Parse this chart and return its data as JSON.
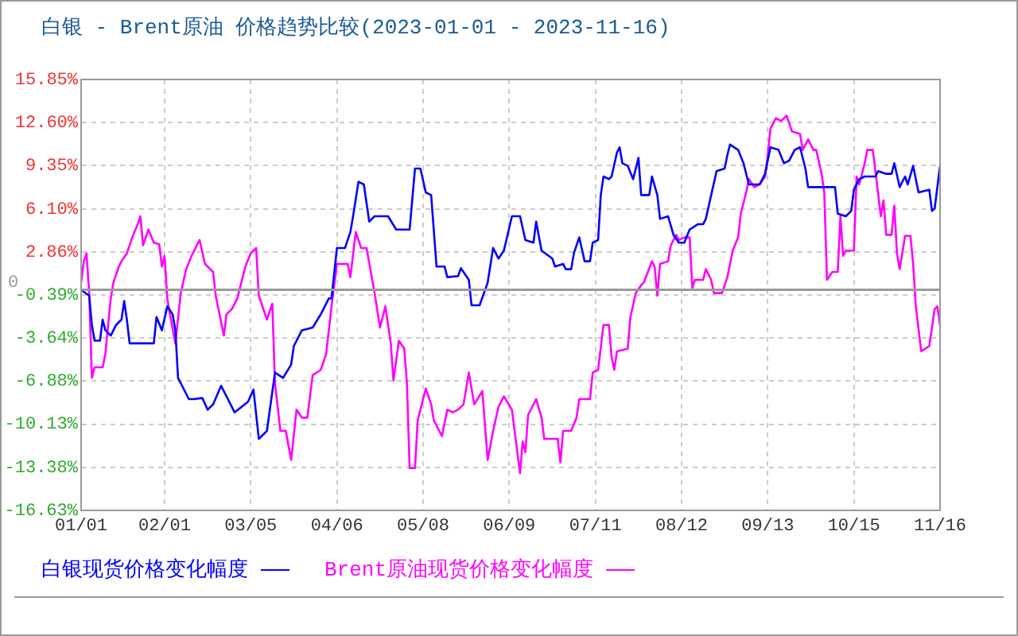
{
  "chart_data": {
    "type": "line",
    "title": "白银 - Brent原油 价格趋势比较(2023-01-01 - 2023-11-16)",
    "xlim": [
      "2023-01-01",
      "2023-11-16"
    ],
    "xticks": [
      {
        "value": "2023-01-01",
        "label": "01/01"
      },
      {
        "value": "2023-02-01",
        "label": "02/01"
      },
      {
        "value": "2023-03-05",
        "label": "03/05"
      },
      {
        "value": "2023-04-06",
        "label": "04/06"
      },
      {
        "value": "2023-05-08",
        "label": "05/08"
      },
      {
        "value": "2023-06-09",
        "label": "06/09"
      },
      {
        "value": "2023-07-11",
        "label": "07/11"
      },
      {
        "value": "2023-08-12",
        "label": "08/12"
      },
      {
        "value": "2023-09-13",
        "label": "09/13"
      },
      {
        "value": "2023-10-15",
        "label": "10/15"
      },
      {
        "value": "2023-11-16",
        "label": "11/16"
      }
    ],
    "ylim": [
      -16.63,
      15.85
    ],
    "yticks": [
      {
        "value": 15.85,
        "label": "15.85%"
      },
      {
        "value": 12.6,
        "label": "12.60%"
      },
      {
        "value": 9.35,
        "label": "9.35%"
      },
      {
        "value": 6.1,
        "label": "6.10%"
      },
      {
        "value": 2.86,
        "label": "2.86%"
      },
      {
        "value": -0.39,
        "label": "-0.39%"
      },
      {
        "value": -3.64,
        "label": "-3.64%"
      },
      {
        "value": -6.88,
        "label": "-6.88%"
      },
      {
        "value": -10.13,
        "label": "-10.13%"
      },
      {
        "value": -13.38,
        "label": "-13.38%"
      },
      {
        "value": -16.63,
        "label": "-16.63%"
      }
    ],
    "grid": true,
    "legend": "bottom",
    "marker": "none",
    "line_style": "solid",
    "ref_lines": [
      {
        "axis": "y",
        "value": 0,
        "label": "0",
        "color": "#999999"
      }
    ],
    "series": [
      {
        "name": "白银现货价格变化幅度",
        "color": "#0000ff",
        "x": [
          "2023-01-01",
          "2023-01-04",
          "2023-01-05",
          "2023-01-06",
          "2023-01-08",
          "2023-01-09",
          "2023-01-10",
          "2023-01-12",
          "2023-01-14",
          "2023-01-16",
          "2023-01-17",
          "2023-01-18",
          "2023-01-19",
          "2023-01-28",
          "2023-01-29",
          "2023-01-31",
          "2023-02-02",
          "2023-02-04",
          "2023-02-05",
          "2023-02-06",
          "2023-02-07",
          "2023-02-10",
          "2023-02-12",
          "2023-02-15",
          "2023-02-17",
          "2023-02-19",
          "2023-02-22",
          "2023-02-24",
          "2023-02-27",
          "2023-03-04",
          "2023-03-06",
          "2023-03-08",
          "2023-03-11",
          "2023-03-14",
          "2023-03-17",
          "2023-03-20",
          "2023-03-21",
          "2023-03-24",
          "2023-03-28",
          "2023-03-31",
          "2023-04-03",
          "2023-04-04",
          "2023-04-06",
          "2023-04-09",
          "2023-04-11",
          "2023-04-12",
          "2023-04-14",
          "2023-04-16",
          "2023-04-18",
          "2023-04-20",
          "2023-04-25",
          "2023-04-28",
          "2023-05-03",
          "2023-05-05",
          "2023-05-07",
          "2023-05-09",
          "2023-05-11",
          "2023-05-13",
          "2023-05-16",
          "2023-05-17",
          "2023-05-21",
          "2023-05-22",
          "2023-05-25",
          "2023-05-26",
          "2023-05-29",
          "2023-06-01",
          "2023-06-03",
          "2023-06-05",
          "2023-06-07",
          "2023-06-10",
          "2023-06-13",
          "2023-06-15",
          "2023-06-18",
          "2023-06-19",
          "2023-06-21",
          "2023-06-25",
          "2023-06-26",
          "2023-06-29",
          "2023-06-30",
          "2023-07-02",
          "2023-07-03",
          "2023-07-05",
          "2023-07-07",
          "2023-07-09",
          "2023-07-10",
          "2023-07-12",
          "2023-07-13",
          "2023-07-14",
          "2023-07-16",
          "2023-07-17",
          "2023-07-19",
          "2023-07-20",
          "2023-07-21",
          "2023-07-23",
          "2023-07-25",
          "2023-07-27",
          "2023-07-28",
          "2023-07-31",
          "2023-08-01",
          "2023-08-03",
          "2023-08-04",
          "2023-08-07",
          "2023-08-09",
          "2023-08-11",
          "2023-08-13",
          "2023-08-15",
          "2023-08-18",
          "2023-08-20",
          "2023-08-21",
          "2023-08-23",
          "2023-08-25",
          "2023-08-28",
          "2023-08-29",
          "2023-08-30",
          "2023-09-02",
          "2023-09-04",
          "2023-09-06",
          "2023-09-10",
          "2023-09-12",
          "2023-09-14",
          "2023-09-17",
          "2023-09-19",
          "2023-09-21",
          "2023-09-23",
          "2023-09-25",
          "2023-09-27",
          "2023-09-28",
          "2023-10-08",
          "2023-10-09",
          "2023-10-12",
          "2023-10-14",
          "2023-10-15",
          "2023-10-17",
          "2023-10-19",
          "2023-10-23",
          "2023-10-24",
          "2023-10-27",
          "2023-10-29",
          "2023-10-30",
          "2023-11-01",
          "2023-11-03",
          "2023-11-04",
          "2023-11-06",
          "2023-11-08",
          "2023-11-12",
          "2023-11-13",
          "2023-11-14",
          "2023-11-15",
          "2023-11-16"
        ],
        "values": [
          0.0,
          -0.45,
          -2.65,
          -3.84,
          -3.84,
          -2.25,
          -3.05,
          -3.45,
          -2.65,
          -2.25,
          -0.85,
          -2.25,
          -4.04,
          -4.04,
          -2.05,
          -3.05,
          -1.25,
          -1.85,
          -3.05,
          -6.64,
          -7.04,
          -8.24,
          -8.24,
          -8.16,
          -9.04,
          -8.64,
          -7.24,
          -8.04,
          -9.24,
          -8.44,
          -7.52,
          -11.24,
          -10.64,
          -6.24,
          -6.64,
          -5.64,
          -4.24,
          -3.05,
          -2.85,
          -1.85,
          -0.65,
          -0.65,
          3.15,
          3.15,
          4.35,
          5.54,
          8.14,
          7.94,
          5.14,
          5.54,
          5.54,
          4.54,
          4.54,
          9.14,
          9.14,
          7.34,
          7.14,
          1.75,
          1.75,
          0.95,
          1.03,
          1.63,
          0.75,
          -1.17,
          -1.17,
          0.55,
          3.15,
          2.35,
          2.95,
          5.54,
          5.54,
          3.75,
          3.55,
          5.14,
          2.95,
          2.35,
          1.75,
          1.95,
          1.55,
          1.55,
          2.75,
          3.95,
          2.15,
          2.15,
          3.55,
          3.75,
          7.14,
          8.54,
          8.34,
          8.54,
          10.34,
          10.74,
          9.54,
          9.34,
          8.34,
          9.94,
          7.14,
          7.14,
          8.54,
          7.14,
          5.34,
          5.54,
          4.14,
          3.55,
          3.55,
          4.54,
          4.94,
          4.94,
          5.34,
          7.14,
          8.94,
          9.14,
          10.14,
          10.94,
          10.54,
          9.54,
          7.94,
          7.94,
          8.74,
          10.74,
          10.54,
          9.54,
          9.74,
          10.54,
          10.74,
          9.14,
          7.74,
          7.74,
          5.74,
          5.54,
          5.94,
          7.54,
          8.34,
          8.54,
          8.54,
          8.94,
          8.74,
          8.74,
          9.54,
          7.74,
          8.54,
          7.94,
          9.34,
          7.34,
          7.54,
          5.94,
          6.14,
          7.74,
          9.34
        ]
      },
      {
        "name": "Brent原油现货价格变化幅度",
        "color": "#ff00ff",
        "x": [
          "2023-01-01",
          "2023-01-02",
          "2023-01-03",
          "2023-01-04",
          "2023-01-05",
          "2023-01-06",
          "2023-01-09",
          "2023-01-10",
          "2023-01-12",
          "2023-01-13",
          "2023-01-15",
          "2023-01-16",
          "2023-01-18",
          "2023-01-20",
          "2023-01-22",
          "2023-01-23",
          "2023-01-24",
          "2023-01-26",
          "2023-01-28",
          "2023-01-30",
          "2023-01-31",
          "2023-02-01",
          "2023-02-02",
          "2023-02-03",
          "2023-02-05",
          "2023-02-07",
          "2023-02-09",
          "2023-02-11",
          "2023-02-14",
          "2023-02-16",
          "2023-02-19",
          "2023-02-20",
          "2023-02-23",
          "2023-02-24",
          "2023-02-26",
          "2023-02-28",
          "2023-03-03",
          "2023-03-05",
          "2023-03-07",
          "2023-03-08",
          "2023-03-11",
          "2023-03-13",
          "2023-03-14",
          "2023-03-16",
          "2023-03-18",
          "2023-03-20",
          "2023-03-22",
          "2023-03-24",
          "2023-03-26",
          "2023-03-28",
          "2023-03-31",
          "2023-04-02",
          "2023-04-04",
          "2023-04-06",
          "2023-04-10",
          "2023-04-11",
          "2023-04-13",
          "2023-04-15",
          "2023-04-17",
          "2023-04-20",
          "2023-04-22",
          "2023-04-24",
          "2023-04-26",
          "2023-04-27",
          "2023-04-29",
          "2023-05-01",
          "2023-05-02",
          "2023-05-03",
          "2023-05-05",
          "2023-05-06",
          "2023-05-09",
          "2023-05-11",
          "2023-05-12",
          "2023-05-15",
          "2023-05-17",
          "2023-05-19",
          "2023-05-21",
          "2023-05-23",
          "2023-05-25",
          "2023-05-27",
          "2023-05-30",
          "2023-06-01",
          "2023-06-03",
          "2023-06-05",
          "2023-06-07",
          "2023-06-10",
          "2023-06-13",
          "2023-06-14",
          "2023-06-15",
          "2023-06-16",
          "2023-06-19",
          "2023-06-21",
          "2023-06-22",
          "2023-06-27",
          "2023-06-28",
          "2023-06-29",
          "2023-07-02",
          "2023-07-04",
          "2023-07-05",
          "2023-07-09",
          "2023-07-10",
          "2023-07-12",
          "2023-07-14",
          "2023-07-16",
          "2023-07-17",
          "2023-07-18",
          "2023-07-19",
          "2023-07-23",
          "2023-07-24",
          "2023-07-26",
          "2023-07-28",
          "2023-07-29",
          "2023-08-01",
          "2023-08-02",
          "2023-08-03",
          "2023-08-04",
          "2023-08-07",
          "2023-08-08",
          "2023-08-10",
          "2023-08-11",
          "2023-08-13",
          "2023-08-15",
          "2023-08-16",
          "2023-08-17",
          "2023-08-20",
          "2023-08-21",
          "2023-08-23",
          "2023-08-24",
          "2023-08-27",
          "2023-08-29",
          "2023-08-31",
          "2023-09-02",
          "2023-09-03",
          "2023-09-05",
          "2023-09-06",
          "2023-09-08",
          "2023-09-10",
          "2023-09-12",
          "2023-09-13",
          "2023-09-14",
          "2023-09-16",
          "2023-09-18",
          "2023-09-20",
          "2023-09-22",
          "2023-09-25",
          "2023-09-26",
          "2023-09-28",
          "2023-09-30",
          "2023-10-01",
          "2023-10-03",
          "2023-10-04",
          "2023-10-05",
          "2023-10-07",
          "2023-10-09",
          "2023-10-10",
          "2023-10-11",
          "2023-10-12",
          "2023-10-15",
          "2023-10-16",
          "2023-10-17",
          "2023-10-19",
          "2023-10-20",
          "2023-10-22",
          "2023-10-23",
          "2023-10-25",
          "2023-10-26",
          "2023-10-27",
          "2023-10-29",
          "2023-10-30",
          "2023-10-31",
          "2023-11-01",
          "2023-11-03",
          "2023-11-05",
          "2023-11-06",
          "2023-11-07",
          "2023-11-09",
          "2023-11-12",
          "2023-11-14",
          "2023-11-15",
          "2023-11-16"
        ],
        "values": [
          0.55,
          2.15,
          2.75,
          -0.25,
          -6.64,
          -5.84,
          -5.84,
          -4.84,
          -0.65,
          0.55,
          1.75,
          2.15,
          2.75,
          3.95,
          4.94,
          5.54,
          3.35,
          4.54,
          3.55,
          3.43,
          1.75,
          2.55,
          -0.65,
          -1.85,
          -4.04,
          -0.25,
          1.55,
          2.55,
          3.75,
          1.95,
          1.35,
          -0.45,
          -3.45,
          -1.85,
          -1.45,
          -0.65,
          1.75,
          2.75,
          3.15,
          -0.45,
          -2.25,
          -1.05,
          -7.04,
          -10.64,
          -10.64,
          -12.83,
          -9.04,
          -9.64,
          -9.64,
          -6.44,
          -6.04,
          -4.84,
          -1.25,
          1.95,
          1.95,
          0.95,
          4.35,
          3.15,
          3.15,
          -0.25,
          -2.85,
          -1.25,
          -4.04,
          -6.84,
          -3.84,
          -4.44,
          -7.04,
          -13.43,
          -13.43,
          -9.84,
          -7.44,
          -8.64,
          -9.84,
          -11.04,
          -9.04,
          -9.24,
          -9.04,
          -8.64,
          -6.24,
          -8.64,
          -7.64,
          -12.83,
          -10.64,
          -8.84,
          -8.04,
          -9.04,
          -13.83,
          -11.44,
          -12.24,
          -9.44,
          -8.24,
          -9.64,
          -11.24,
          -11.24,
          -13.03,
          -10.64,
          -10.64,
          -9.64,
          -8.24,
          -8.24,
          -6.24,
          -6.04,
          -2.65,
          -2.65,
          -5.04,
          -6.04,
          -4.64,
          -4.44,
          -2.05,
          -0.25,
          0.35,
          0.55,
          2.15,
          1.75,
          -0.45,
          1.95,
          2.15,
          3.35,
          4.14,
          3.75,
          3.95,
          3.95,
          0.15,
          0.75,
          0.75,
          1.55,
          0.75,
          -0.25,
          -0.25,
          0.95,
          2.95,
          3.95,
          5.74,
          7.34,
          8.34,
          7.74,
          7.94,
          8.54,
          10.14,
          12.14,
          12.93,
          12.73,
          13.13,
          11.94,
          11.74,
          10.54,
          11.34,
          10.54,
          10.54,
          8.74,
          7.34,
          0.75,
          1.35,
          1.35,
          5.54,
          2.55,
          2.95,
          2.95,
          8.54,
          7.94,
          9.54,
          10.54,
          10.54,
          8.94,
          5.54,
          6.74,
          4.14,
          4.14,
          6.34,
          2.75,
          1.55,
          4.06,
          4.06,
          1.95,
          -1.25,
          -4.64,
          -4.24,
          -1.45,
          -1.25,
          -2.65
        ]
      }
    ]
  }
}
